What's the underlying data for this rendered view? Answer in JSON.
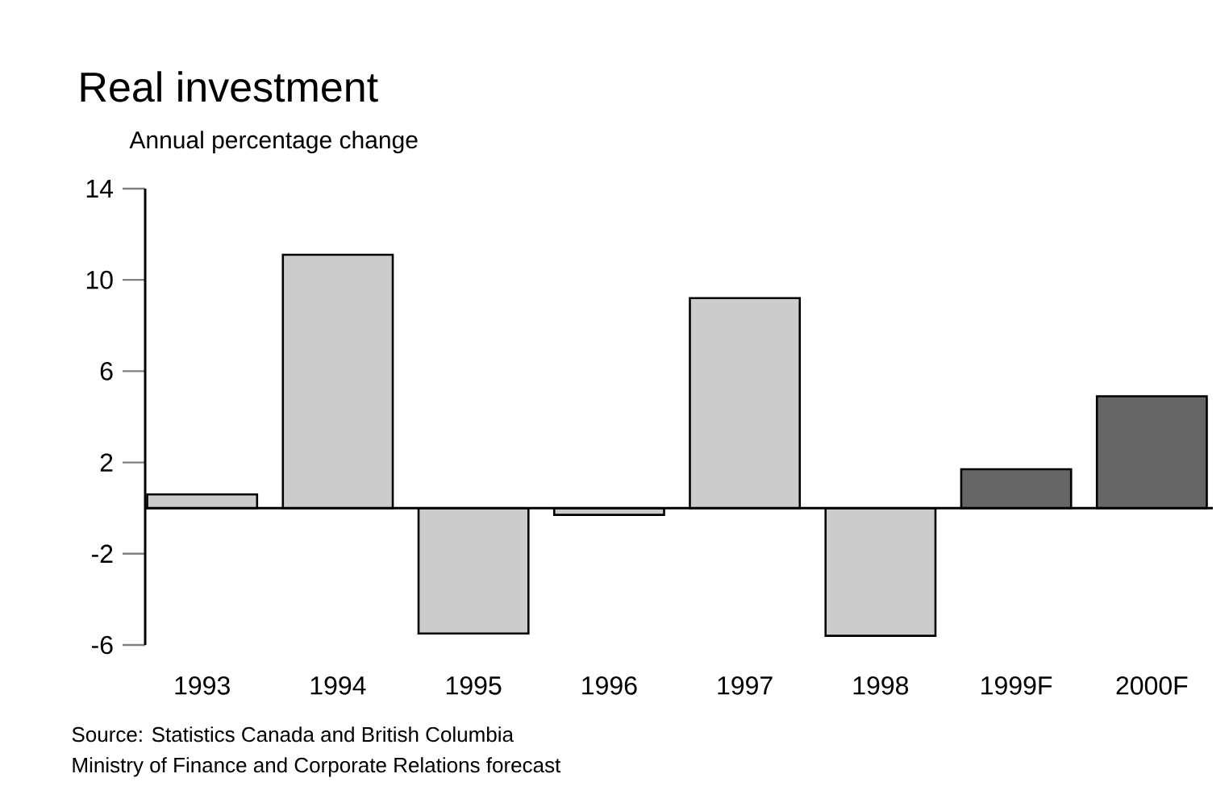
{
  "chart_data": {
    "type": "bar",
    "title": "Real investment",
    "subtitle": "Annual percentage change",
    "categories": [
      "1993",
      "1994",
      "1995",
      "1996",
      "1997",
      "1998",
      "1999F",
      "2000F"
    ],
    "values": [
      0.6,
      11.1,
      -5.5,
      -0.3,
      9.2,
      -5.6,
      1.7,
      4.9
    ],
    "colors": [
      "#cccccc",
      "#cccccc",
      "#cccccc",
      "#cccccc",
      "#cccccc",
      "#cccccc",
      "#666666",
      "#666666"
    ],
    "ylim": [
      -6,
      14
    ],
    "yticks": [
      -6,
      -2,
      2,
      6,
      10,
      14
    ],
    "annotations": [
      "Source: Statistics Canada and British Columbia",
      "Ministry of Finance and Corporate Relations forecast"
    ]
  }
}
